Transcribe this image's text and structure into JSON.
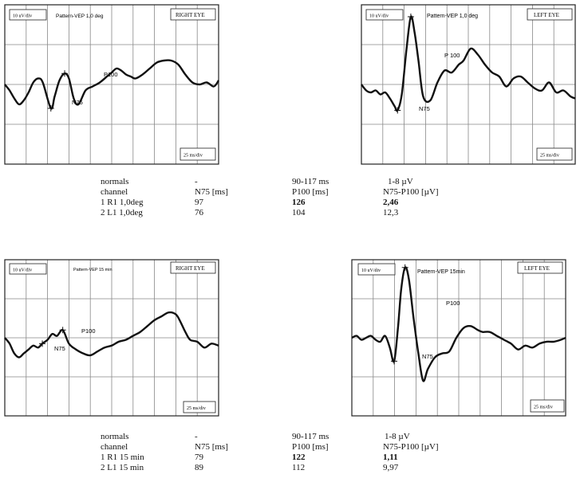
{
  "panels": [
    {
      "amp_scale": "10 uV/div",
      "title": "Pattern-VEP  1,0 deg",
      "eye": "RIGHT EYE",
      "time_scale": "25 ms/div",
      "peaks": {
        "N75": "N75",
        "P100": "P100"
      }
    },
    {
      "amp_scale": "10 uV/div",
      "title": "Pattern-VEP  1,0 deg",
      "eye": "LEFT EYE",
      "time_scale": "25 ms/div",
      "peaks": {
        "N75": "N75",
        "P100": "P 100"
      }
    },
    {
      "amp_scale": "10 uV/div",
      "title": "Pattern-VEP 15 min",
      "eye": "RIGHT EYE",
      "time_scale": "25 ms/div",
      "peaks": {
        "N75": "N75",
        "P100": "P100"
      }
    },
    {
      "amp_scale": "10 uV/div",
      "title": "Pattern-VEP  15min",
      "eye": "LEFT EYE",
      "time_scale": "25 ms/div",
      "peaks": {
        "N75": "N75",
        "P100": "P100"
      }
    }
  ],
  "tables": [
    {
      "normals": {
        "label": "normals",
        "n75": "-",
        "p100": "90-117 ms",
        "amp": "1-8 µV"
      },
      "header": {
        "label": "channel",
        "n75": "N75 [ms]",
        "p100": "P100 [ms]",
        "amp": "N75-P100 [µV]"
      },
      "rows": [
        {
          "label": "1  R1    1,0deg",
          "n75": "97",
          "p100": "126",
          "amp": "2,46"
        },
        {
          "label": "2  L1     1,0deg",
          "n75": "76",
          "p100": "104",
          "amp": "12,3"
        }
      ]
    },
    {
      "normals": {
        "label": "normals",
        "n75": "-",
        "p100": "90-117 ms",
        "amp": "1-8 µV"
      },
      "header": {
        "label": "channel",
        "n75": "N75 [ms]",
        "p100": "P100 [ms]",
        "amp": "N75-P100 [µV]"
      },
      "rows": [
        {
          "label": "1  R1   15 min",
          "n75": "79",
          "p100": "122",
          "amp": "1,11"
        },
        {
          "label": "2  L1    15 min",
          "n75": "89",
          "p100": "112",
          "amp": "9,97"
        }
      ]
    }
  ],
  "chart_data": [
    {
      "type": "line",
      "title": "Pattern-VEP  1,0 deg",
      "series": [
        {
          "name": "RIGHT EYE",
          "x": [
            0,
            10,
            20,
            30,
            40,
            50,
            60,
            70,
            80,
            97,
            105,
            115,
            126,
            135,
            145,
            155,
            170,
            185,
            200,
            215,
            225,
            235,
            245,
            255,
            265,
            275,
            290,
            305,
            320,
            335,
            350,
            365,
            380,
            395,
            410,
            425,
            440,
            450
          ],
          "y": [
            0,
            -0.3,
            -0.7,
            -1.0,
            -0.8,
            -0.4,
            0.1,
            0.3,
            0.1,
            -1.2,
            -0.6,
            0.2,
            0.55,
            0.3,
            -0.7,
            -1.0,
            -0.3,
            -0.1,
            0.1,
            0.4,
            0.6,
            0.8,
            0.7,
            0.5,
            0.4,
            0.3,
            0.5,
            0.8,
            1.1,
            1.2,
            1.2,
            1.0,
            0.5,
            0.1,
            0.0,
            0.1,
            -0.1,
            0.2
          ]
        }
      ],
      "ylim": [
        -4,
        4
      ],
      "xlim": [
        0,
        450
      ]
    },
    {
      "type": "line",
      "title": "Pattern-VEP  1,0 deg",
      "series": [
        {
          "name": "LEFT EYE",
          "x": [
            0,
            10,
            20,
            30,
            40,
            50,
            60,
            70,
            76,
            85,
            95,
            104,
            112,
            120,
            130,
            145,
            160,
            175,
            190,
            205,
            215,
            230,
            245,
            260,
            275,
            290,
            305,
            320,
            335,
            350,
            365,
            380,
            395,
            410,
            425,
            440,
            450
          ],
          "y": [
            0,
            -0.3,
            -0.4,
            -0.3,
            -0.5,
            -0.4,
            -0.7,
            -1.1,
            -1.3,
            -0.5,
            1.8,
            3.4,
            2.6,
            1.2,
            -0.6,
            -0.8,
            0.1,
            0.7,
            0.6,
            1.0,
            1.2,
            1.8,
            1.5,
            1.0,
            0.6,
            0.4,
            -0.1,
            0.3,
            0.4,
            0.1,
            -0.2,
            -0.3,
            0.1,
            -0.4,
            -0.3,
            -0.6,
            -0.7
          ]
        }
      ],
      "ylim": [
        -4,
        4
      ],
      "xlim": [
        0,
        450
      ]
    },
    {
      "type": "line",
      "title": "Pattern-VEP 15 min",
      "series": [
        {
          "name": "RIGHT EYE",
          "x": [
            0,
            10,
            20,
            30,
            40,
            50,
            60,
            70,
            79,
            90,
            100,
            110,
            122,
            135,
            150,
            165,
            180,
            195,
            210,
            225,
            240,
            255,
            270,
            285,
            300,
            315,
            330,
            345,
            360,
            370,
            380,
            390,
            405,
            420,
            435,
            450
          ],
          "y": [
            0,
            -0.3,
            -0.8,
            -1.0,
            -0.8,
            -0.6,
            -0.4,
            -0.5,
            -0.3,
            -0.1,
            0.2,
            0.1,
            0.4,
            -0.3,
            -0.6,
            -0.8,
            -0.9,
            -0.7,
            -0.5,
            -0.4,
            -0.2,
            -0.1,
            0.1,
            0.3,
            0.6,
            0.9,
            1.1,
            1.3,
            1.2,
            0.8,
            0.3,
            -0.1,
            -0.2,
            -0.5,
            -0.3,
            -0.4
          ]
        }
      ],
      "ylim": [
        -4,
        4
      ],
      "xlim": [
        0,
        450
      ]
    },
    {
      "type": "line",
      "title": "Pattern-VEP  15min",
      "series": [
        {
          "name": "LEFT EYE",
          "x": [
            0,
            10,
            20,
            30,
            40,
            50,
            60,
            70,
            80,
            89,
            97,
            104,
            112,
            120,
            130,
            140,
            150,
            160,
            175,
            190,
            205,
            220,
            235,
            250,
            265,
            275,
            290,
            305,
            320,
            335,
            350,
            365,
            380,
            395,
            410,
            425,
            440,
            450
          ],
          "y": [
            0,
            0.1,
            -0.1,
            0.0,
            0.1,
            -0.1,
            -0.2,
            0.1,
            -0.5,
            -1.2,
            0.5,
            2.5,
            3.6,
            3.0,
            1.0,
            -0.8,
            -2.2,
            -1.6,
            -1.0,
            -0.8,
            -0.7,
            0.0,
            0.5,
            0.6,
            0.4,
            0.3,
            0.3,
            0.1,
            -0.1,
            -0.3,
            -0.6,
            -0.4,
            -0.5,
            -0.3,
            -0.2,
            -0.2,
            -0.1,
            0.0
          ]
        }
      ],
      "ylim": [
        -4,
        4
      ],
      "xlim": [
        0,
        450
      ]
    }
  ]
}
